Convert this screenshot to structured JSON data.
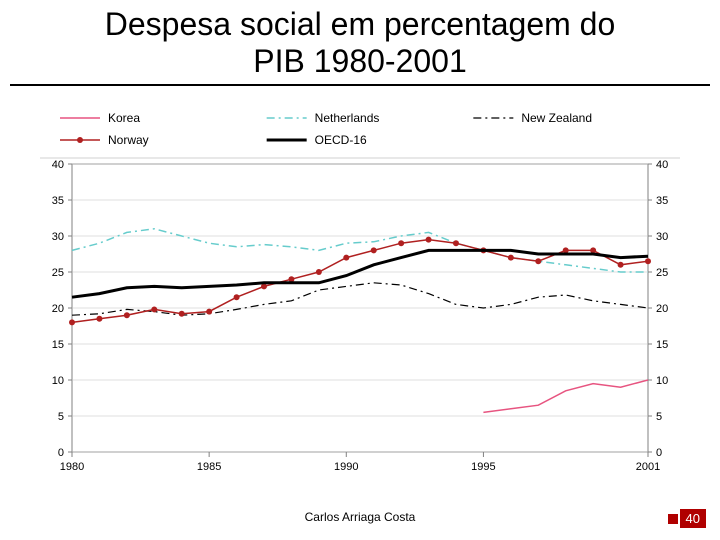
{
  "title_line1": "Despesa social em percentagem do",
  "title_line2": "PIB 1980-2001",
  "title_fontsize": 32,
  "title_color": "#000000",
  "footer_author": "Carlos Arriaga Costa",
  "footer_fontsize": 12,
  "page_number": "40",
  "page_bg": "#b00000",
  "chart": {
    "type": "line",
    "background_color": "#ffffff",
    "grid_color": "#c0c0c0",
    "axis_color": "#808080",
    "font_color": "#000000",
    "label_fontsize": 12,
    "tick_fontsize": 11,
    "xlim": [
      1980,
      2001
    ],
    "ylim": [
      0,
      40
    ],
    "ytick_step": 5,
    "xticks": [
      1980,
      1985,
      1990,
      1995,
      2001
    ],
    "yticks": [
      0,
      5,
      10,
      15,
      20,
      25,
      30,
      35,
      40
    ],
    "legend": {
      "position": "top",
      "items": [
        {
          "label": "Korea",
          "color": "#e75480",
          "dash": "none",
          "marker": "none",
          "width": 1.5
        },
        {
          "label": "Netherlands",
          "color": "#66cccc",
          "dash": "dashdot",
          "marker": "none",
          "width": 1.5
        },
        {
          "label": "New Zealand",
          "color": "#000000",
          "dash": "dashdot",
          "marker": "none",
          "width": 1.2
        },
        {
          "label": "Norway",
          "color": "#b02020",
          "dash": "none",
          "marker": "circle",
          "width": 1.5
        },
        {
          "label": "OECD-16",
          "color": "#000000",
          "dash": "none",
          "marker": "none",
          "width": 3.0
        }
      ]
    },
    "series": {
      "years": [
        1980,
        1981,
        1982,
        1983,
        1984,
        1985,
        1986,
        1987,
        1988,
        1989,
        1990,
        1991,
        1992,
        1993,
        1994,
        1995,
        1996,
        1997,
        1998,
        1999,
        2000,
        2001
      ],
      "Netherlands": [
        28.0,
        29.0,
        30.5,
        31.0,
        30.0,
        29.0,
        28.5,
        28.8,
        28.5,
        28.0,
        29.0,
        29.2,
        30.0,
        30.5,
        29.0,
        28.0,
        27.0,
        26.5,
        26.0,
        25.5,
        25.0,
        25.0
      ],
      "Norway": [
        18.0,
        18.5,
        19.0,
        19.8,
        19.2,
        19.5,
        21.5,
        23.0,
        24.0,
        25.0,
        27.0,
        28.0,
        29.0,
        29.5,
        29.0,
        28.0,
        27.0,
        26.5,
        28.0,
        28.0,
        26.0,
        26.5
      ],
      "OECD-16": [
        21.5,
        22.0,
        22.8,
        23.0,
        22.8,
        23.0,
        23.2,
        23.5,
        23.5,
        23.5,
        24.5,
        26.0,
        27.0,
        28.0,
        28.0,
        28.0,
        28.0,
        27.5,
        27.5,
        27.5,
        27.0,
        27.2
      ],
      "New Zealand": [
        19.0,
        19.2,
        19.8,
        19.5,
        19.0,
        19.2,
        19.8,
        20.5,
        21.0,
        22.5,
        23.0,
        23.5,
        23.2,
        22.0,
        20.5,
        20.0,
        20.5,
        21.5,
        21.8,
        21.0,
        20.5,
        20.0
      ],
      "Korea": [
        null,
        null,
        null,
        null,
        null,
        null,
        null,
        null,
        null,
        null,
        null,
        null,
        null,
        null,
        null,
        5.5,
        6.0,
        6.5,
        8.5,
        9.5,
        9.0,
        10.0
      ]
    }
  }
}
